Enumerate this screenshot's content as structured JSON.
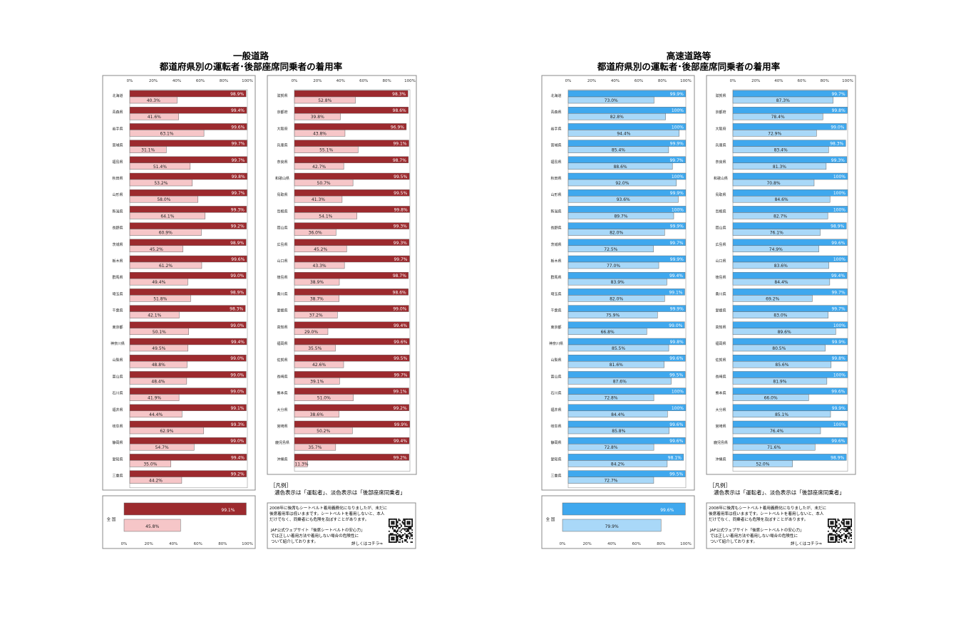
{
  "general": {
    "title1": "一般道路",
    "title2": "都道府県別の運転者･後部座席同乗者の着用率",
    "colors": {
      "driver": "#9c2a2e",
      "rear": "#f6c6c8"
    },
    "national_label": "全 国"
  },
  "expressway": {
    "title1": "高速道路等",
    "title2": "都道府県別の運転者･後部座席同乗者の着用率",
    "colors": {
      "driver": "#3fa8ee",
      "rear": "#a9d8f8"
    },
    "national_label": "全 国"
  },
  "tick_labels": [
    "0%",
    "20%",
    "40%",
    "60%",
    "80%",
    "100%"
  ],
  "legend": {
    "heading": "［凡例］",
    "text": "濃色表示は「運転者」、淡色表示は「後部座席同乗者」"
  },
  "note": {
    "line1": "2008年に後席もシートベルト着用義務化になりましたが、未だに",
    "line2": "後席着用率は低いままです。シートベルトを着用しないと、本人",
    "line3": "だけでなく、同乗者にも危険を及ぼすことがあります。",
    "line4": "JAF公式ウェブサイト「後席シートベルトの安心力」",
    "line5": "では正しい着用方法や着用しない場合の危険性に",
    "line6": "ついて紹介しております。",
    "link": "詳しくはコチラ⇒"
  },
  "chart_data": [
    {
      "type": "bar",
      "title": "一般道路 都道府県別の運転者･後部座席同乗者の着用率",
      "xlim": [
        0,
        100
      ],
      "categories": [
        "北海道",
        "青森県",
        "岩手県",
        "宮城県",
        "福島県",
        "秋田県",
        "山形県",
        "新潟県",
        "長野県",
        "茨城県",
        "栃木県",
        "群馬県",
        "埼玉県",
        "千葉県",
        "東京都",
        "神奈川県",
        "山梨県",
        "富山県",
        "石川県",
        "福井県",
        "岐阜県",
        "静岡県",
        "愛知県",
        "三重県",
        "滋賀県",
        "京都府",
        "大阪府",
        "兵庫県",
        "奈良県",
        "和歌山県",
        "鳥取県",
        "島根県",
        "岡山県",
        "広島県",
        "山口県",
        "徳島県",
        "香川県",
        "愛媛県",
        "高知県",
        "福岡県",
        "佐賀県",
        "長崎県",
        "熊本県",
        "大分県",
        "宮崎県",
        "鹿児島県",
        "沖縄県"
      ],
      "series": [
        {
          "values": [
            98.9,
            99.4,
            99.6,
            99.7,
            99.7,
            99.8,
            99.7,
            99.3,
            99.2,
            98.9,
            99.6,
            99.0,
            98.9,
            98.3,
            99.0,
            99.4,
            99.0,
            99.0,
            99.0,
            99.1,
            99.3,
            99.0,
            99.4,
            99.2,
            98.3,
            98.6,
            96.9,
            99.1,
            98.7,
            99.5,
            99.5,
            99.8,
            99.3,
            99.3,
            99.7,
            98.7,
            98.6,
            99.0,
            99.4,
            99.6,
            99.5,
            99.7,
            99.1,
            99.2,
            99.9,
            99.4,
            99.2
          ]
        },
        {
          "values": [
            40.3,
            41.6,
            63.1,
            31.1,
            51.4,
            53.2,
            58.0,
            64.1,
            60.9,
            45.2,
            61.2,
            49.4,
            51.8,
            42.1,
            50.1,
            49.5,
            48.8,
            48.4,
            41.9,
            44.4,
            62.9,
            54.7,
            35.0,
            44.2,
            52.8,
            39.8,
            43.8,
            55.1,
            42.7,
            50.7,
            41.3,
            54.1,
            36.0,
            45.2,
            43.3,
            38.9,
            38.7,
            37.2,
            29.0,
            35.5,
            42.6,
            39.1,
            51.0,
            38.6,
            50.2,
            35.7,
            11.3
          ]
        }
      ],
      "national": {
        "category": "全 国",
        "driver": 99.1,
        "rear": 45.8
      }
    },
    {
      "type": "bar",
      "title": "高速道路等 都道府県別の運転者･後部座席同乗者の着用率",
      "xlim": [
        0,
        100
      ],
      "categories": [
        "北海道",
        "青森県",
        "岩手県",
        "宮城県",
        "福島県",
        "秋田県",
        "山形県",
        "新潟県",
        "長野県",
        "茨城県",
        "栃木県",
        "群馬県",
        "埼玉県",
        "千葉県",
        "東京都",
        "神奈川県",
        "山梨県",
        "富山県",
        "石川県",
        "福井県",
        "岐阜県",
        "静岡県",
        "愛知県",
        "三重県",
        "滋賀県",
        "京都府",
        "大阪府",
        "兵庫県",
        "奈良県",
        "和歌山県",
        "鳥取県",
        "島根県",
        "岡山県",
        "広島県",
        "山口県",
        "徳島県",
        "香川県",
        "愛媛県",
        "高知県",
        "福岡県",
        "佐賀県",
        "長崎県",
        "熊本県",
        "大分県",
        "宮崎県",
        "鹿児島県",
        "沖縄県"
      ],
      "series": [
        {
          "values": [
            99.9,
            100,
            100,
            99.9,
            99.7,
            100,
            99.9,
            100,
            99.9,
            99.7,
            99.9,
            99.4,
            99.1,
            99.9,
            99.0,
            99.8,
            99.6,
            99.5,
            100,
            100,
            99.6,
            99.6,
            98.1,
            99.5,
            99.7,
            99.8,
            99.0,
            98.3,
            99.3,
            100,
            100,
            100,
            98.9,
            99.6,
            100,
            99.4,
            99.7,
            99.7,
            100,
            99.9,
            99.8,
            100,
            99.6,
            99.9,
            100,
            99.6,
            98.9
          ]
        },
        {
          "values": [
            73.0,
            82.8,
            94.4,
            85.4,
            88.6,
            92.0,
            93.6,
            89.7,
            82.0,
            72.5,
            77.0,
            83.9,
            82.0,
            75.9,
            66.8,
            85.5,
            81.6,
            87.6,
            72.8,
            84.4,
            85.8,
            72.8,
            84.2,
            72.7,
            87.3,
            78.4,
            72.9,
            83.4,
            81.3,
            70.8,
            84.6,
            82.7,
            76.1,
            74.9,
            83.6,
            84.4,
            69.2,
            83.0,
            89.6,
            80.5,
            85.6,
            81.9,
            66.0,
            85.1,
            76.4,
            71.6,
            52.0
          ]
        }
      ],
      "national": {
        "category": "全 国",
        "driver": 99.6,
        "rear": 79.9
      }
    }
  ]
}
